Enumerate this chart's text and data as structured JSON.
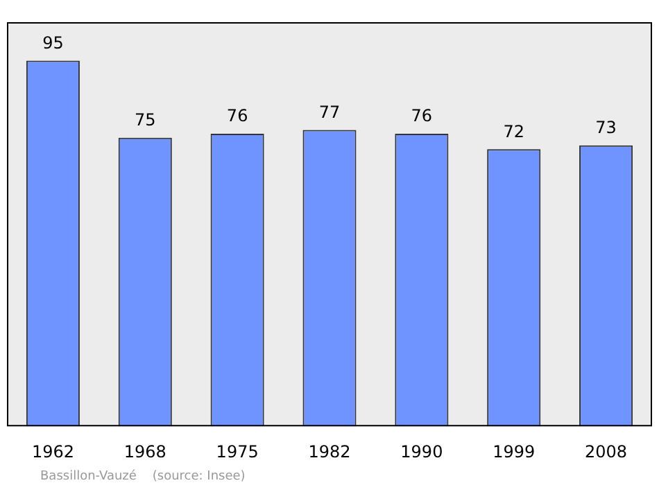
{
  "chart_data": {
    "type": "bar",
    "categories": [
      "1962",
      "1968",
      "1975",
      "1982",
      "1990",
      "1999",
      "2008"
    ],
    "values": [
      95,
      75,
      76,
      77,
      76,
      72,
      73
    ],
    "color": "#7094ff",
    "ylim": [
      0,
      105
    ],
    "tick_labels": "x",
    "data_labels": true,
    "grid": false,
    "legend": false,
    "annotations": [
      "Bassillon-Vauzé    (source: Insee)"
    ]
  }
}
